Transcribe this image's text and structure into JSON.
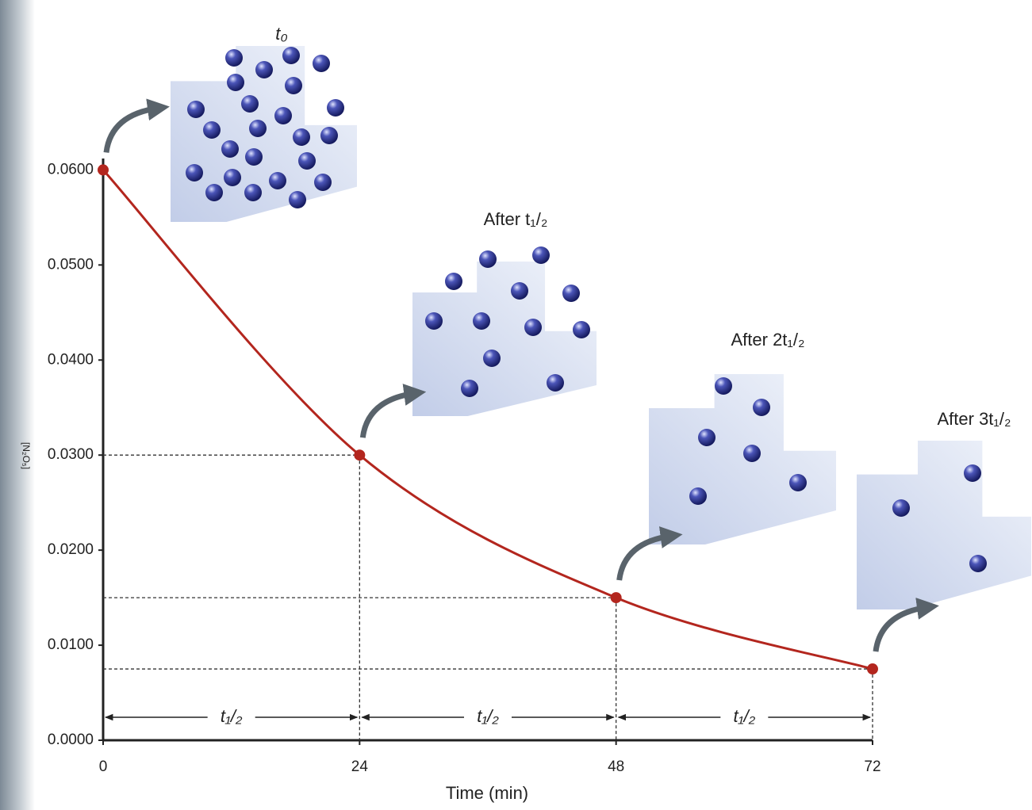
{
  "chart_data": {
    "type": "line",
    "y_label": "[N₂O₅]",
    "x_label": "Time (min)",
    "x": [
      0,
      24,
      48,
      72
    ],
    "series": [
      {
        "name": "[N₂O₅]",
        "color": "#b3261e",
        "values": [
          0.06,
          0.03,
          0.015,
          0.0075
        ]
      }
    ],
    "xlim": [
      0,
      72
    ],
    "xticks": [
      0,
      24,
      48,
      72
    ],
    "ylim": [
      0,
      0.0612
    ],
    "yticks": [
      {
        "value": 0,
        "label": "0.0000"
      },
      {
        "value": 0.01,
        "label": "0.0100"
      },
      {
        "value": 0.02,
        "label": "0.0200"
      },
      {
        "value": 0.03,
        "label": "0.0300"
      },
      {
        "value": 0.04,
        "label": "0.0400"
      },
      {
        "value": 0.05,
        "label": "0.0500"
      },
      {
        "value": 0.06,
        "label": "0.0600"
      }
    ],
    "annotations": [
      "t₀",
      "After t₁/₂",
      "After 2t₁/₂",
      "After 3t₁/₂"
    ],
    "interval_labels": [
      "t₁/₂",
      "t₁/₂",
      "t₁/₂"
    ]
  }
}
